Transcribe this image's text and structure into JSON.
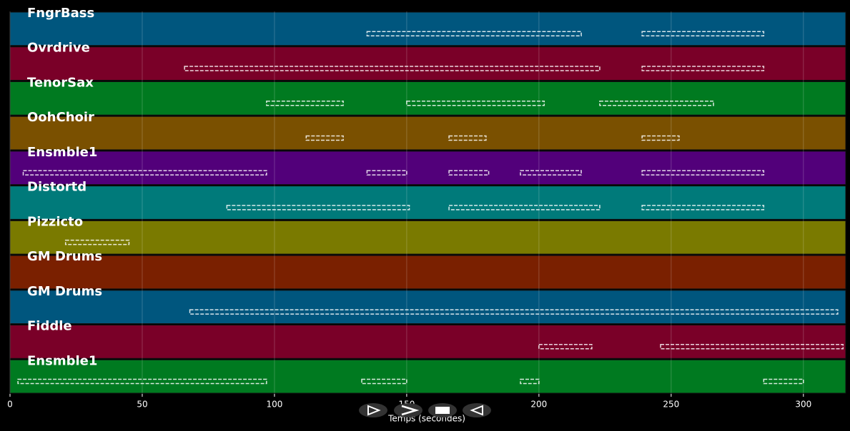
{
  "chart_data": {
    "type": "pianoroll",
    "xlabel": "Temps (secondes)",
    "xlim": [
      0,
      316
    ],
    "xticks": [
      0,
      50,
      100,
      150,
      200,
      250,
      300
    ],
    "grid": true,
    "tracks": [
      {
        "name": "FngrBass",
        "color": "#00567e",
        "segments": [
          [
            135,
            216
          ],
          [
            239,
            285
          ]
        ]
      },
      {
        "name": "Ovrdrive",
        "color": "#7a0028",
        "segments": [
          [
            66,
            223
          ],
          [
            239,
            285
          ]
        ]
      },
      {
        "name": "TenorSax",
        "color": "#007a20",
        "segments": [
          [
            97,
            126
          ],
          [
            150,
            202
          ],
          [
            223,
            266
          ]
        ]
      },
      {
        "name": "OohChoir",
        "color": "#7a5000",
        "segments": [
          [
            112,
            126
          ],
          [
            166,
            180
          ],
          [
            239,
            253
          ]
        ]
      },
      {
        "name": "Ensmble1",
        "color": "#52007a",
        "segments": [
          [
            5,
            97
          ],
          [
            135,
            150
          ],
          [
            166,
            181
          ],
          [
            193,
            216
          ],
          [
            239,
            285
          ]
        ]
      },
      {
        "name": "Distortd",
        "color": "#007a7a",
        "segments": [
          [
            82,
            151
          ],
          [
            166,
            223
          ],
          [
            239,
            285
          ]
        ]
      },
      {
        "name": "Pizzicto",
        "color": "#7a7a00",
        "segments": [
          [
            21,
            45
          ]
        ]
      },
      {
        "name": "GM Drums",
        "color": "#7a2000",
        "segments": []
      },
      {
        "name": "GM Drums",
        "color": "#00567e",
        "segments": [
          [
            68,
            313
          ]
        ]
      },
      {
        "name": "Fiddle",
        "color": "#7a0028",
        "segments": [
          [
            200,
            220
          ],
          [
            246,
            315
          ]
        ]
      },
      {
        "name": "Ensmble1",
        "color": "#007a20",
        "segments": [
          [
            3,
            97
          ],
          [
            133,
            150
          ],
          [
            193,
            200
          ],
          [
            285,
            300
          ]
        ]
      }
    ]
  }
}
